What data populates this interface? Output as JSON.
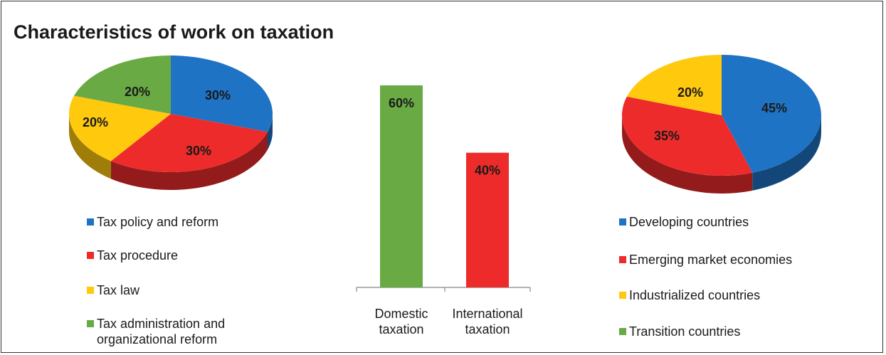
{
  "title": "Characteristics of work on taxation",
  "chart_data": [
    {
      "type": "pie",
      "categories": [
        "Tax policy and reform",
        "Tax procedure",
        "Tax law",
        "Tax administration and organizational reform"
      ],
      "values": [
        30,
        30,
        20,
        20
      ],
      "labels": [
        "30%",
        "30%",
        "20%",
        "20%"
      ],
      "colors": [
        "#1f73c4",
        "#ee2b2b",
        "#ffc90e",
        "#6aaa45"
      ],
      "legend_position": "bottom"
    },
    {
      "type": "bar",
      "categories": [
        "Domestic taxation",
        "International taxation"
      ],
      "category_lines": [
        [
          "Domestic",
          "taxation"
        ],
        [
          "International",
          "taxation"
        ]
      ],
      "values": [
        60,
        40
      ],
      "labels": [
        "60%",
        "40%"
      ],
      "colors": [
        "#6aaa45",
        "#ee2b2b"
      ],
      "ylim": [
        0,
        60
      ]
    },
    {
      "type": "pie",
      "categories": [
        "Developing countries",
        "Emerging market economies",
        "Industrialized countries",
        "Transition countries"
      ],
      "values": [
        45,
        35,
        20,
        0
      ],
      "labels": [
        "45%",
        "35%",
        "20%",
        ""
      ],
      "colors": [
        "#1f73c4",
        "#ee2b2b",
        "#ffc90e",
        "#6aaa45"
      ],
      "legend_position": "bottom"
    }
  ]
}
